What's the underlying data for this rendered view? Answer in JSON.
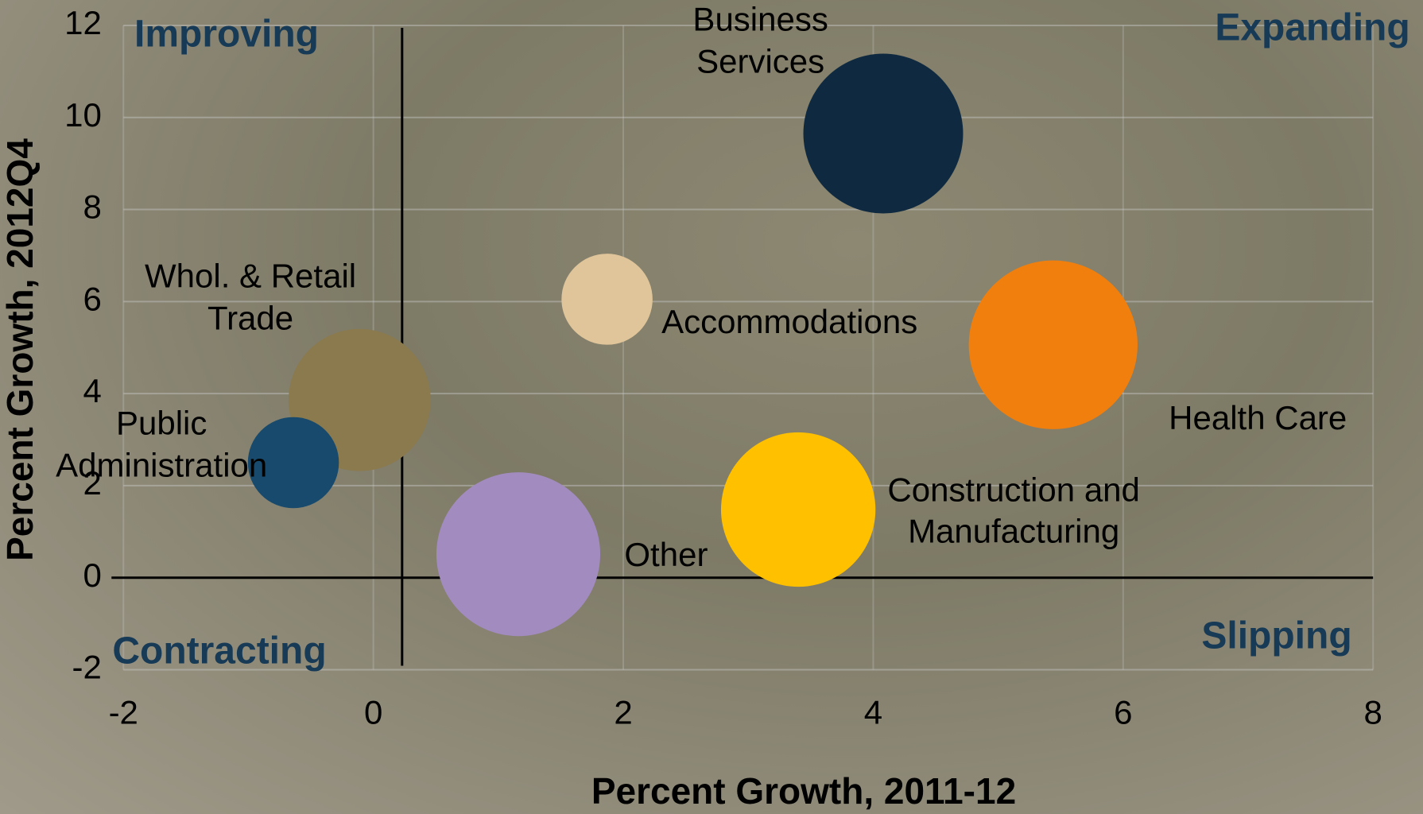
{
  "chart_data": {
    "type": "bubble",
    "x_label": "Percent Growth, 2011-12",
    "y_label": "Percent Growth, 2012Q4",
    "xlim": [
      -2,
      8
    ],
    "xticks": [
      -2,
      0,
      2,
      4,
      6,
      8
    ],
    "ylim": [
      -2,
      12
    ],
    "yticks": [
      -2,
      0,
      2,
      4,
      6,
      8,
      10,
      12
    ],
    "grid": true,
    "quadrant_lines": {
      "x": 0.23,
      "y": 0
    },
    "quadrant_labels": {
      "top_left": "Improving",
      "top_right": "Expanding",
      "bottom_left": "Contracting",
      "bottom_right": "Slipping"
    },
    "series": [
      {
        "name": "Business Services",
        "color": "#0f2a40",
        "x": 4.08,
        "y": 9.65,
        "size": 77
      },
      {
        "name": "Accommodations",
        "color": "#e0c59a",
        "x": 1.87,
        "y": 6.05,
        "size": 25
      },
      {
        "name": "Health Care",
        "color": "#f07f0e",
        "x": 5.44,
        "y": 5.06,
        "size": 86
      },
      {
        "name": "Whol. & Retail Trade",
        "color": "#8b7a4e",
        "x": -0.11,
        "y": 3.86,
        "size": 61
      },
      {
        "name": "Public Administration",
        "color": "#174a6c",
        "x": -0.64,
        "y": 2.5,
        "size": 25
      },
      {
        "name": "Other",
        "color": "#a28bbf",
        "x": 1.16,
        "y": 0.51,
        "size": 81
      },
      {
        "name": "Construction and Manufacturing",
        "color": "#ffc000",
        "x": 3.4,
        "y": 1.48,
        "size": 72
      }
    ]
  }
}
